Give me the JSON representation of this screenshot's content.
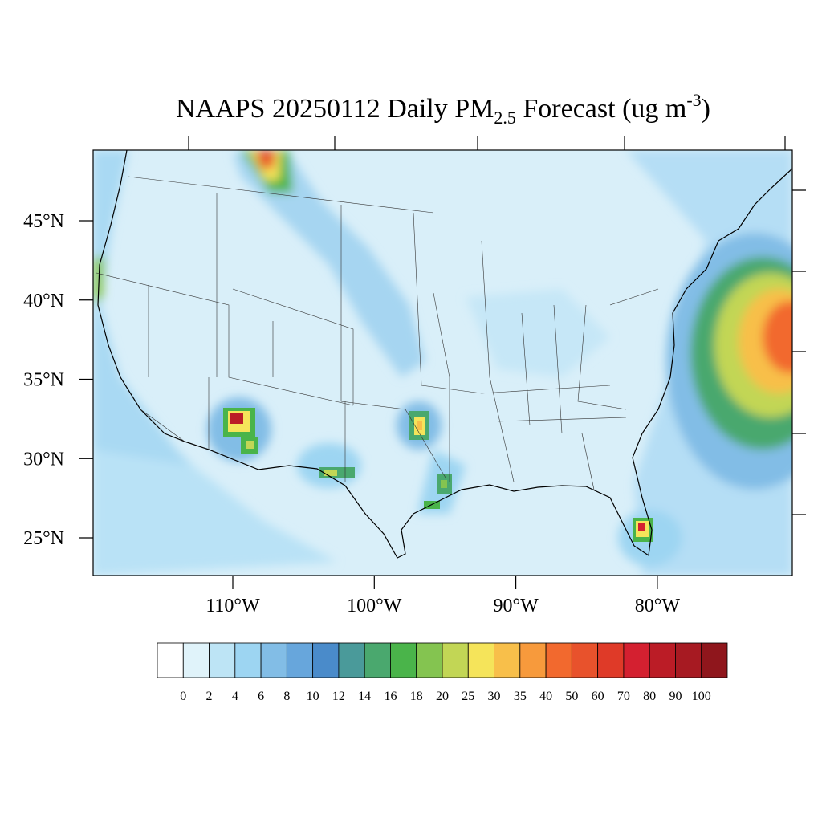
{
  "title": {
    "main": "NAAPS 20250112 Daily PM",
    "subscript": "2.5",
    "middle": " Forecast (ug m",
    "superscript": "-3",
    "end": ")"
  },
  "map": {
    "latitude_ticks": [
      {
        "value": 45,
        "label": "45°N"
      },
      {
        "value": 40,
        "label": "40°N"
      },
      {
        "value": 35,
        "label": "35°N"
      },
      {
        "value": 30,
        "label": "30°N"
      },
      {
        "value": 25,
        "label": "25°N"
      }
    ],
    "longitude_ticks": [
      {
        "value": 110,
        "label": "110°W"
      },
      {
        "value": 100,
        "label": "100°W"
      },
      {
        "value": 90,
        "label": "90°W"
      },
      {
        "value": 80,
        "label": "80°W"
      }
    ]
  },
  "colorbar": {
    "levels": [
      0,
      2,
      4,
      6,
      8,
      10,
      12,
      14,
      16,
      18,
      20,
      25,
      30,
      35,
      40,
      50,
      60,
      70,
      80,
      90,
      100
    ],
    "colors": [
      "#ffffff",
      "#e0f3fa",
      "#bde4f5",
      "#9dd5f2",
      "#82bde6",
      "#67a6dc",
      "#4a8bca",
      "#4a9a9a",
      "#4aa86e",
      "#4ab44a",
      "#84c450",
      "#c2d655",
      "#f5e45a",
      "#f8bf4a",
      "#f79a3c",
      "#f2692e",
      "#e8522c",
      "#df3a28",
      "#d42030",
      "#bb1c26",
      "#a71a22",
      "#8f161c"
    ]
  }
}
